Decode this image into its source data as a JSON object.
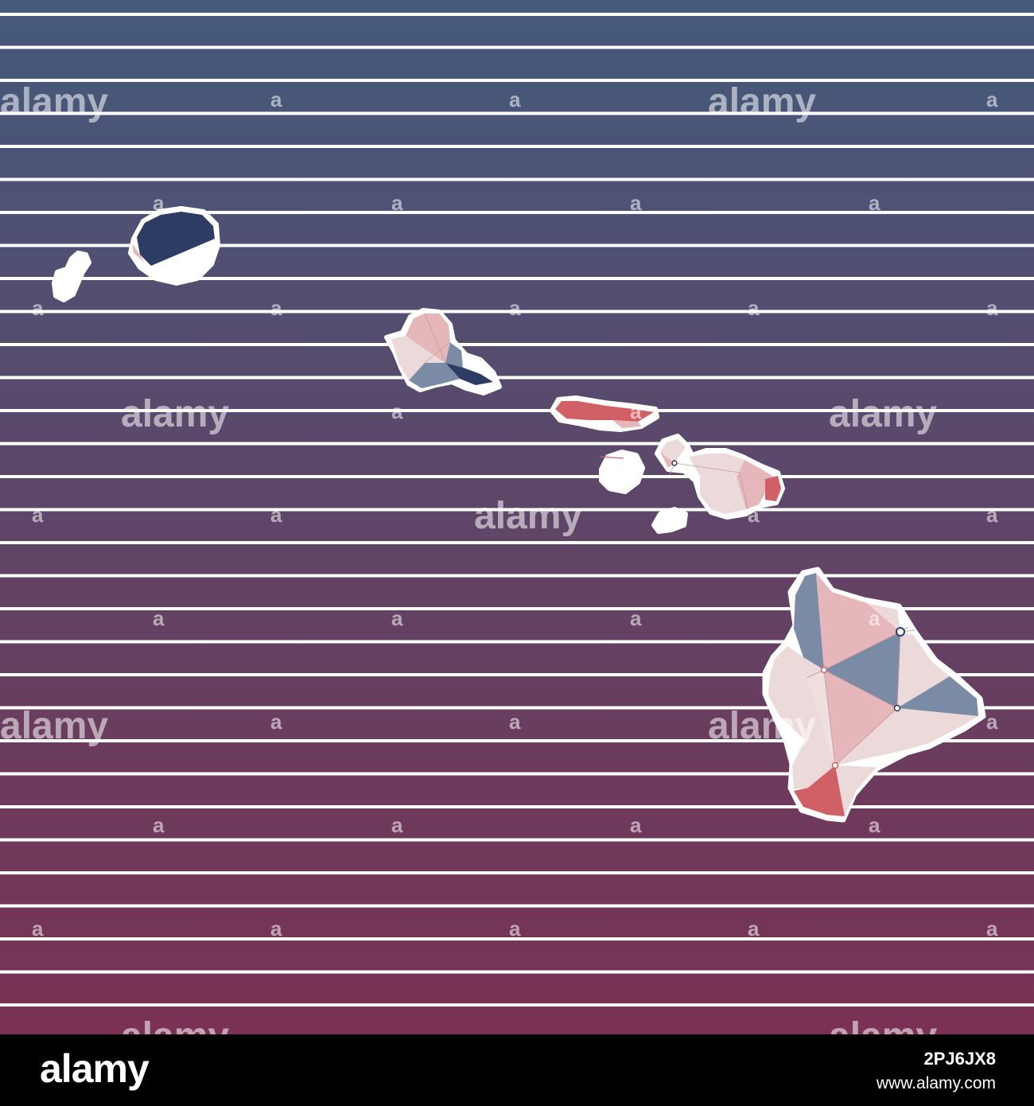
{
  "colors": {
    "bg_top": "#435a7c",
    "bg_bottom": "#7a3153",
    "stripe": "#ffffff",
    "poly_light": "#ecdada",
    "poly_pink": "#e5b7ba",
    "poly_red": "#d05f66",
    "poly_blue": "#7b8ba6",
    "poly_navy": "#2d3c63",
    "outline": "#ffffff"
  },
  "map": {
    "islands": [
      "Niihau",
      "Kauai",
      "Oahu",
      "Molokai",
      "Lanai",
      "Maui",
      "Kahoolawe",
      "Hawaii"
    ],
    "cities_marked": 6
  },
  "watermark": {
    "text": "alamy",
    "mark": "a"
  },
  "footer": {
    "brand": "alamy",
    "image_id": "2PJ6JX8",
    "url": "www.alamy.com"
  }
}
